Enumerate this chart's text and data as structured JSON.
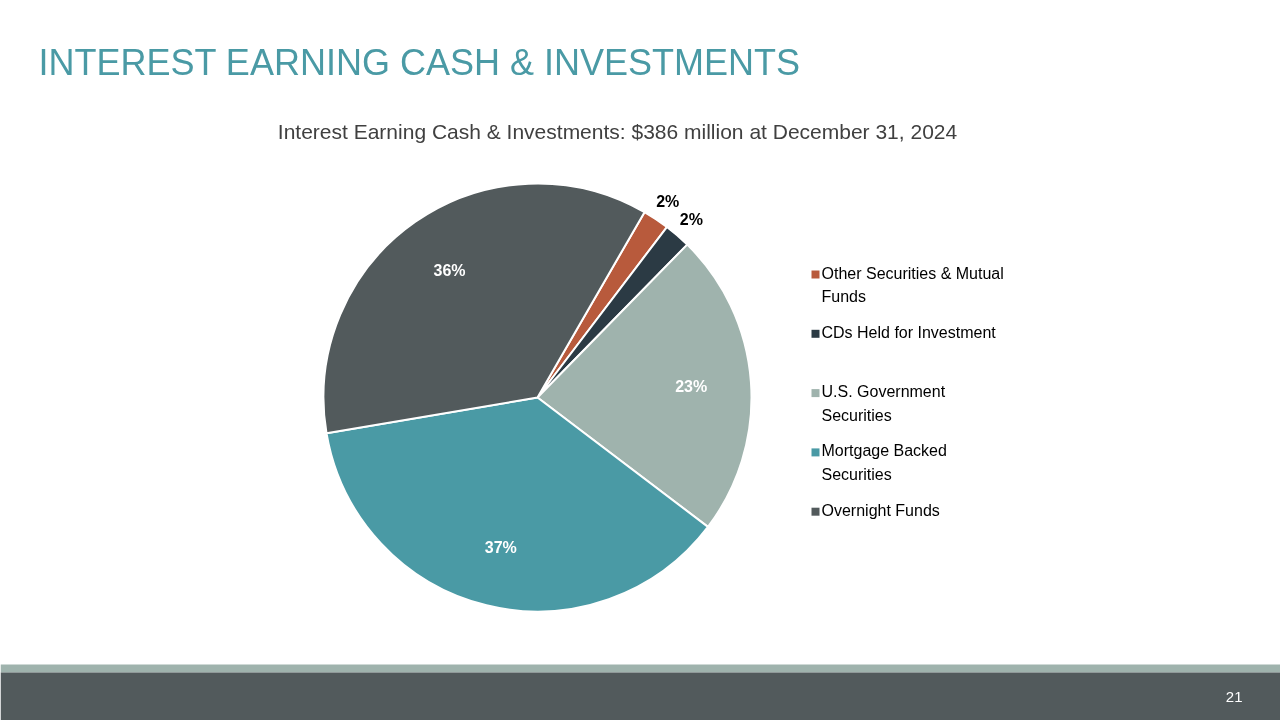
{
  "chart_data": {
    "type": "pie",
    "title": "INTEREST EARNING CASH & INVESTMENTS",
    "subtitle": "Interest Earning Cash & Investments: $386 million at December 31, 2024",
    "categories": [
      "Other Securities & Mutual Funds",
      "CDs Held for Investment",
      "U.S. Government Securities",
      "Mortgage Backed Securities",
      "Overnight Funds"
    ],
    "values": [
      2,
      2,
      23,
      37,
      36
    ],
    "colors": [
      "#b85a3c",
      "#2b3a44",
      "#9fb3ad",
      "#4a9aa5",
      "#525a5c"
    ],
    "value_labels": [
      "2%",
      "2%",
      "23%",
      "37%",
      "36%"
    ],
    "legend": "right",
    "annotations": [
      "21"
    ]
  }
}
